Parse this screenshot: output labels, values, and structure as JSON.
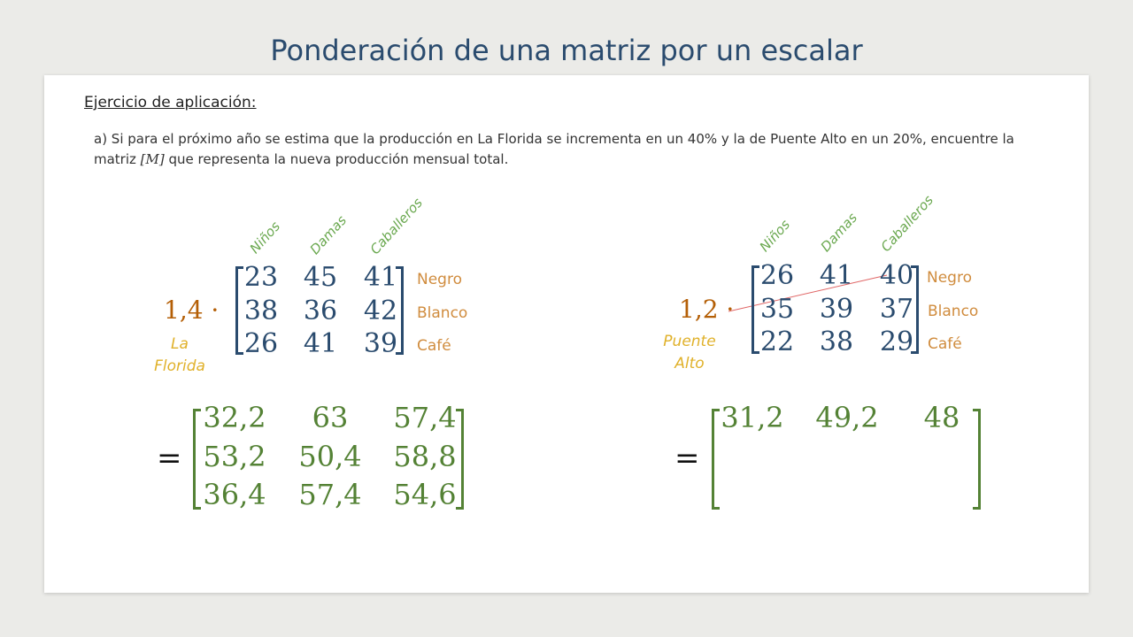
{
  "title": "Ponderación de una matriz por un escalar",
  "heading": "Ejercicio de aplicación:",
  "problem": {
    "line1": "a) Si para el próximo año se estima que la producción en La Florida se incrementa en un 40% y la de Puente Alto en un 20%, encuentre la",
    "line2_pre": "matriz ",
    "line2_math": "[M]",
    "line2_post": " que representa la nueva producción mensual total."
  },
  "column_headers": [
    "Niños",
    "Damas",
    "Caballeros"
  ],
  "row_labels": [
    "Negro",
    "Blanco",
    "Café"
  ],
  "left": {
    "scalar": "1,4 ·",
    "place_line1": "La",
    "place_line2": "Florida",
    "matrix": [
      [
        "23",
        "45",
        "41"
      ],
      [
        "38",
        "36",
        "42"
      ],
      [
        "26",
        "41",
        "39"
      ]
    ],
    "equals": "=",
    "result": [
      [
        "32,2",
        "63",
        "57,4"
      ],
      [
        "53,2",
        "50,4",
        "58,8"
      ],
      [
        "36,4",
        "57,4",
        "54,6"
      ]
    ]
  },
  "right": {
    "scalar": "1,2 ·",
    "place_line1": "Puente",
    "place_line2": "Alto",
    "matrix": [
      [
        "26",
        "41",
        "40"
      ],
      [
        "35",
        "39",
        "37"
      ],
      [
        "22",
        "38",
        "29"
      ]
    ],
    "equals": "=",
    "result": [
      [
        "31,2",
        "49,2",
        "48"
      ]
    ]
  },
  "colors": {
    "title": "#2a4b6e",
    "matrix_numbers": "#2a4b6e",
    "result_numbers": "#548235",
    "column_headers": "#6aa84f",
    "scalar": "#b45f06",
    "place": "#e0b12a",
    "row_labels": "#d08c3e",
    "pointer_line": "#e06666"
  }
}
